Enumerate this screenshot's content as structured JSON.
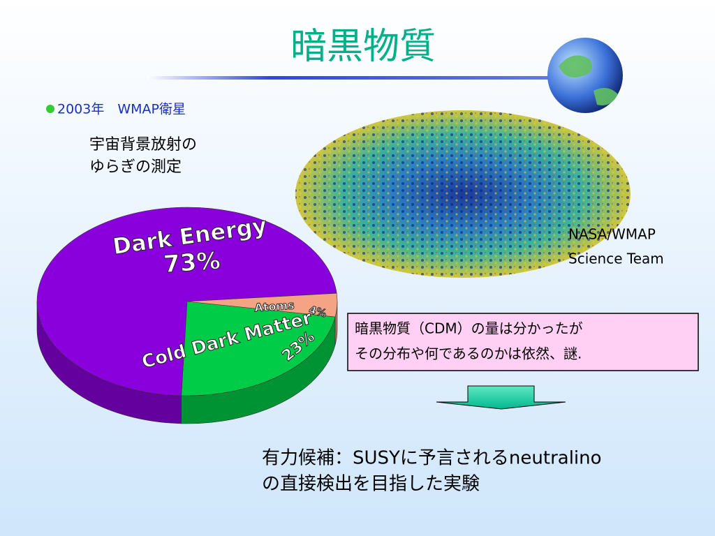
{
  "title": "暗黒物質",
  "bullet": "2003年　WMAP衛星",
  "caption": [
    "宇宙背景放射の",
    "ゆらぎの測定"
  ],
  "credit": [
    "NASA/WMAP",
    "Science Team"
  ],
  "note": [
    "暗黒物質（CDM）の量は分かったが",
    "その分布や何であるのかは依然、謎."
  ],
  "conclusion": [
    "有力候補：SUSYに予言されるneutralino",
    "の直接検出を目指した実験"
  ],
  "chart_data": {
    "type": "pie",
    "categories": [
      "Dark Energy",
      "Cold Dark Matter",
      "Atoms"
    ],
    "values": [
      73,
      23,
      4
    ],
    "value_labels": [
      "73%",
      "23%",
      "4%"
    ],
    "colors": [
      "#8a00dc",
      "#00cc48",
      "#f4a484"
    ]
  }
}
